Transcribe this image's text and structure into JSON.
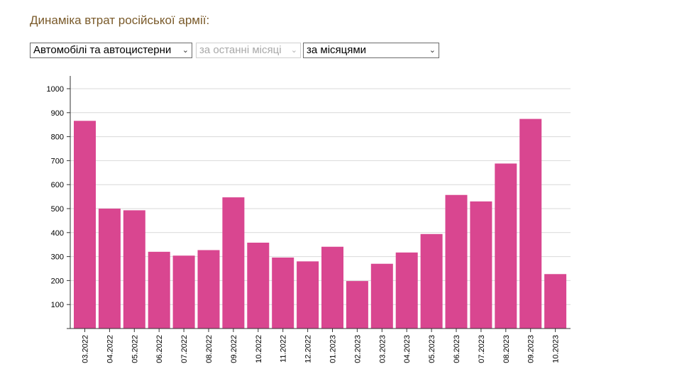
{
  "header": {
    "title": "Динаміка втрат російської армії:"
  },
  "controls": {
    "category_select": "Автомобілі та автоцистерни",
    "period_select": "за останні місяці",
    "grouping_select": "за місяцями"
  },
  "colors": {
    "bar": "#d94690",
    "heading": "#7a5a2a"
  },
  "chart_data": {
    "type": "bar",
    "categories": [
      "03.2022",
      "04.2022",
      "05.2022",
      "06.2022",
      "07.2022",
      "08.2022",
      "09.2022",
      "10.2022",
      "11.2022",
      "12.2022",
      "01.2023",
      "02.2023",
      "03.2023",
      "04.2023",
      "05.2023",
      "06.2023",
      "07.2023",
      "08.2023",
      "09.2023",
      "10.2023"
    ],
    "values": [
      866,
      500,
      493,
      320,
      304,
      327,
      547,
      358,
      296,
      280,
      341,
      198,
      270,
      317,
      394,
      557,
      530,
      688,
      874,
      227
    ],
    "yticks": [
      100,
      200,
      300,
      400,
      500,
      600,
      700,
      800,
      900,
      1000
    ],
    "ylim": [
      0,
      1000
    ],
    "grid": true,
    "legend": "none"
  }
}
